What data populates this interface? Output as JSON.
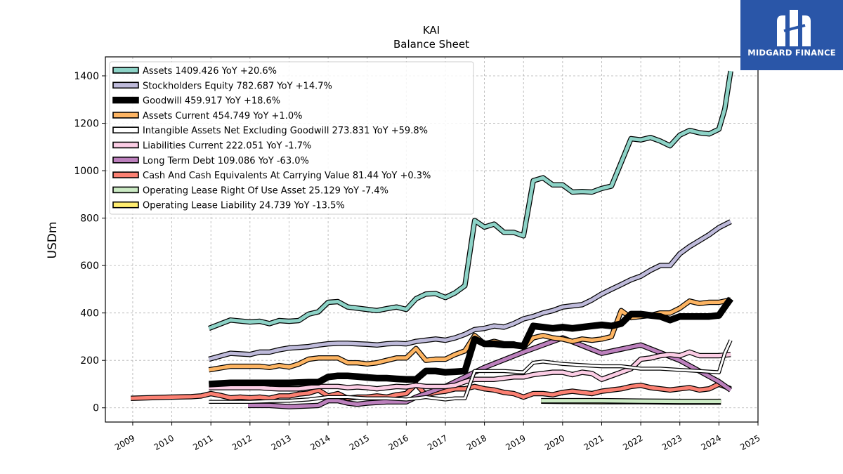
{
  "brand": {
    "name": "MIDGARD FINANCE",
    "icon": "midgard-logo-icon"
  },
  "chart_data": {
    "type": "line",
    "title": "KAI",
    "subtitle": "Balance  Sheet",
    "ylabel": "USDm",
    "xlabel": "",
    "xlim": [
      2008.3,
      2025.0
    ],
    "ylim": [
      -60,
      1480
    ],
    "grid": true,
    "legend_position": "top-left",
    "x_ticks": [
      2009,
      2010,
      2011,
      2012,
      2013,
      2014,
      2015,
      2016,
      2017,
      2018,
      2019,
      2020,
      2021,
      2022,
      2023,
      2024,
      2025
    ],
    "y_ticks": [
      0,
      200,
      400,
      600,
      800,
      1000,
      1200,
      1400
    ],
    "series": [
      {
        "name": "Assets",
        "legend": "Assets  1409.426 YoY +20.6%",
        "color": "#8dd3c7",
        "width": 5,
        "x": [
          2010.95,
          2011.5,
          2012.0,
          2012.25,
          2012.5,
          2012.75,
          2013.0,
          2013.25,
          2013.5,
          2013.75,
          2014.0,
          2014.25,
          2014.5,
          2014.75,
          2015.0,
          2015.25,
          2015.5,
          2015.75,
          2016.0,
          2016.25,
          2016.5,
          2016.75,
          2017.0,
          2017.25,
          2017.5,
          2017.75,
          2018.0,
          2018.25,
          2018.5,
          2018.75,
          2019.0,
          2019.25,
          2019.5,
          2019.75,
          2020.0,
          2020.25,
          2020.5,
          2020.75,
          2021.0,
          2021.25,
          2021.5,
          2021.75,
          2022.0,
          2022.25,
          2022.5,
          2022.75,
          2023.0,
          2023.25,
          2023.5,
          2023.75,
          2024.0,
          2024.15,
          2024.3
        ],
        "y": [
          335,
          370,
          362,
          365,
          355,
          368,
          365,
          368,
          395,
          405,
          445,
          448,
          425,
          420,
          415,
          410,
          418,
          425,
          415,
          460,
          480,
          482,
          465,
          485,
          515,
          790,
          762,
          775,
          740,
          740,
          725,
          958,
          970,
          940,
          940,
          910,
          912,
          910,
          925,
          935,
          1035,
          1135,
          1130,
          1140,
          1125,
          1105,
          1150,
          1170,
          1160,
          1155,
          1175,
          1260,
          1420
        ]
      },
      {
        "name": "Stockholders Equity",
        "legend": "Stockholders Equity  782.687 YoY +14.7%",
        "color": "#bebada",
        "width": 5,
        "x": [
          2010.95,
          2011.5,
          2012.0,
          2012.25,
          2012.5,
          2012.75,
          2013.0,
          2013.25,
          2013.5,
          2013.75,
          2014.0,
          2014.25,
          2014.5,
          2014.75,
          2015.0,
          2015.25,
          2015.5,
          2015.75,
          2016.0,
          2016.25,
          2016.5,
          2016.75,
          2017.0,
          2017.25,
          2017.5,
          2017.75,
          2018.0,
          2018.25,
          2018.5,
          2018.75,
          2019.0,
          2019.25,
          2019.5,
          2019.75,
          2020.0,
          2020.25,
          2020.5,
          2020.75,
          2021.0,
          2021.25,
          2021.5,
          2021.75,
          2022.0,
          2022.25,
          2022.5,
          2022.75,
          2023.0,
          2023.25,
          2023.5,
          2023.75,
          2024.0,
          2024.3
        ],
        "y": [
          205,
          230,
          225,
          235,
          235,
          245,
          252,
          255,
          258,
          265,
          270,
          272,
          272,
          270,
          268,
          265,
          270,
          272,
          270,
          280,
          285,
          290,
          285,
          295,
          310,
          330,
          335,
          345,
          340,
          355,
          375,
          385,
          400,
          410,
          425,
          430,
          435,
          455,
          480,
          500,
          520,
          540,
          555,
          580,
          600,
          600,
          650,
          680,
          705,
          730,
          760,
          785
        ]
      },
      {
        "name": "Goodwill",
        "legend": "Goodwill  459.917 YoY +18.6%",
        "color": "#000000",
        "width": 7,
        "x": [
          2010.95,
          2011.5,
          2012.0,
          2012.5,
          2013.0,
          2013.5,
          2013.75,
          2014.0,
          2014.25,
          2014.5,
          2014.75,
          2015.0,
          2015.25,
          2015.5,
          2015.75,
          2016.0,
          2016.25,
          2016.5,
          2016.75,
          2017.0,
          2017.25,
          2017.5,
          2017.75,
          2018.0,
          2018.25,
          2018.5,
          2018.75,
          2019.0,
          2019.25,
          2019.5,
          2019.75,
          2020.0,
          2020.25,
          2020.5,
          2020.75,
          2021.0,
          2021.25,
          2021.5,
          2021.75,
          2022.0,
          2022.25,
          2022.5,
          2022.75,
          2023.0,
          2023.25,
          2023.5,
          2023.75,
          2024.0,
          2024.15,
          2024.3
        ],
        "y": [
          100,
          105,
          105,
          105,
          105,
          108,
          108,
          130,
          135,
          135,
          132,
          128,
          125,
          125,
          122,
          120,
          120,
          155,
          155,
          150,
          152,
          155,
          290,
          270,
          270,
          265,
          265,
          260,
          345,
          340,
          335,
          340,
          335,
          340,
          345,
          350,
          345,
          355,
          395,
          395,
          390,
          385,
          370,
          385,
          385,
          385,
          385,
          390,
          425,
          460
        ]
      },
      {
        "name": "Assets Current",
        "legend": "Assets Current  454.749 YoY +1.0%",
        "color": "#fdb462",
        "width": 5,
        "x": [
          2010.95,
          2011.5,
          2012.0,
          2012.25,
          2012.5,
          2012.75,
          2013.0,
          2013.25,
          2013.5,
          2013.75,
          2014.0,
          2014.25,
          2014.5,
          2014.75,
          2015.0,
          2015.25,
          2015.5,
          2015.75,
          2016.0,
          2016.25,
          2016.5,
          2016.75,
          2017.0,
          2017.25,
          2017.5,
          2017.75,
          2018.0,
          2018.25,
          2018.5,
          2018.75,
          2019.0,
          2019.25,
          2019.5,
          2019.75,
          2020.0,
          2020.25,
          2020.5,
          2020.75,
          2021.0,
          2021.25,
          2021.5,
          2021.75,
          2022.0,
          2022.25,
          2022.5,
          2022.75,
          2023.0,
          2023.25,
          2023.5,
          2023.75,
          2024.0,
          2024.3
        ],
        "y": [
          160,
          175,
          175,
          175,
          170,
          178,
          172,
          185,
          205,
          210,
          210,
          210,
          190,
          190,
          185,
          190,
          200,
          210,
          210,
          250,
          200,
          205,
          205,
          225,
          240,
          305,
          270,
          280,
          270,
          270,
          255,
          295,
          305,
          295,
          290,
          280,
          290,
          285,
          290,
          300,
          410,
          380,
          385,
          390,
          400,
          400,
          420,
          450,
          440,
          445,
          445,
          455
        ]
      },
      {
        "name": "Intangible Assets Net Excluding Goodwill",
        "legend": "Intangible Assets Net Excluding Goodwill  273.831 YoY +59.8%",
        "color": "#ffffff",
        "width": 3,
        "x": [
          2010.95,
          2011.5,
          2012.0,
          2012.5,
          2013.0,
          2013.5,
          2014.0,
          2014.5,
          2015.0,
          2015.5,
          2016.0,
          2016.25,
          2016.5,
          2016.75,
          2017.0,
          2017.25,
          2017.5,
          2017.75,
          2018.0,
          2018.5,
          2019.0,
          2019.25,
          2019.5,
          2020.0,
          2020.5,
          2021.0,
          2021.5,
          2022.0,
          2022.5,
          2023.0,
          2023.5,
          2024.0,
          2024.15,
          2024.3
        ],
        "y": [
          25,
          25,
          25,
          28,
          30,
          35,
          45,
          45,
          40,
          40,
          35,
          40,
          45,
          40,
          35,
          40,
          40,
          155,
          155,
          155,
          150,
          190,
          195,
          185,
          180,
          175,
          175,
          165,
          165,
          160,
          155,
          150,
          230,
          285
        ]
      },
      {
        "name": "Liabilities Current",
        "legend": "Liabilities Current  222.051 YoY -1.7%",
        "color": "#fccde5",
        "width": 5,
        "x": [
          2010.95,
          2011.5,
          2012.0,
          2012.25,
          2012.5,
          2012.75,
          2013.0,
          2013.25,
          2013.5,
          2013.75,
          2014.0,
          2014.25,
          2014.5,
          2014.75,
          2015.0,
          2015.25,
          2015.5,
          2015.75,
          2016.0,
          2016.25,
          2016.5,
          2016.75,
          2017.0,
          2017.25,
          2017.5,
          2017.75,
          2018.0,
          2018.25,
          2018.5,
          2018.75,
          2019.0,
          2019.25,
          2019.5,
          2019.75,
          2020.0,
          2020.25,
          2020.5,
          2020.75,
          2021.0,
          2021.25,
          2021.5,
          2021.75,
          2022.0,
          2022.25,
          2022.5,
          2022.75,
          2023.0,
          2023.25,
          2023.5,
          2023.75,
          2024.0,
          2024.3
        ],
        "y": [
          85,
          85,
          85,
          85,
          82,
          80,
          80,
          80,
          85,
          90,
          90,
          90,
          85,
          88,
          85,
          80,
          85,
          90,
          88,
          95,
          90,
          90,
          90,
          95,
          110,
          120,
          120,
          120,
          125,
          130,
          130,
          140,
          145,
          150,
          150,
          140,
          150,
          145,
          120,
          135,
          150,
          165,
          205,
          210,
          220,
          225,
          220,
          235,
          220,
          220,
          220,
          225
        ]
      },
      {
        "name": "Long Term Debt",
        "legend": "Long Term Debt  109.086 YoY -63.0%",
        "color": "#bc80bd",
        "width": 5,
        "x": [
          2011.95,
          2012.5,
          2013.0,
          2013.5,
          2013.75,
          2014.0,
          2014.25,
          2014.5,
          2014.75,
          2015.0,
          2015.5,
          2016.0,
          2016.25,
          2017.0,
          2018.0,
          2019.0,
          2020.0,
          2021.0,
          2022.0,
          2023.0,
          2024.0,
          2024.3
        ],
        "y": [
          10,
          10,
          5,
          8,
          10,
          30,
          30,
          20,
          15,
          20,
          25,
          25,
          45,
          90,
          170,
          235,
          295,
          230,
          265,
          200,
          110,
          75
        ]
      },
      {
        "name": "Cash And Cash Equivalents At Carrying Value",
        "legend": "Cash And Cash Equivalents At Carrying Value  81.44 YoY +0.3%",
        "color": "#fb8072",
        "width": 5,
        "x": [
          2008.95,
          2009.5,
          2010.0,
          2010.5,
          2010.75,
          2011.0,
          2011.25,
          2011.5,
          2011.75,
          2012.0,
          2012.25,
          2012.5,
          2012.75,
          2013.0,
          2013.25,
          2013.5,
          2013.75,
          2014.0,
          2014.25,
          2014.5,
          2014.75,
          2015.0,
          2015.25,
          2015.5,
          2015.75,
          2016.0,
          2016.25,
          2016.5,
          2016.75,
          2017.0,
          2017.25,
          2017.5,
          2017.75,
          2018.0,
          2018.25,
          2018.5,
          2018.75,
          2019.0,
          2019.25,
          2019.5,
          2019.75,
          2020.0,
          2020.25,
          2020.5,
          2020.75,
          2021.0,
          2021.25,
          2021.5,
          2021.75,
          2022.0,
          2022.25,
          2022.5,
          2022.75,
          2023.0,
          2023.25,
          2023.5,
          2023.75,
          2024.0,
          2024.3
        ],
        "y": [
          40,
          43,
          45,
          47,
          50,
          60,
          52,
          42,
          45,
          42,
          45,
          40,
          50,
          50,
          58,
          62,
          75,
          50,
          60,
          40,
          45,
          45,
          50,
          45,
          55,
          60,
          100,
          55,
          65,
          70,
          80,
          80,
          90,
          80,
          75,
          65,
          60,
          45,
          60,
          60,
          55,
          65,
          70,
          65,
          60,
          70,
          75,
          80,
          90,
          95,
          85,
          80,
          75,
          80,
          85,
          75,
          80,
          100,
          80
        ]
      },
      {
        "name": "Operating Lease Right Of Use Asset",
        "legend": "Operating Lease Right Of Use Asset  25.129 YoY -7.4%",
        "color": "#ccebc5",
        "width": 5,
        "x": [
          2019.45,
          2020.0,
          2021.0,
          2022.0,
          2023.0,
          2024.05
        ],
        "y": [
          30,
          30,
          30,
          28,
          27,
          27
        ]
      },
      {
        "name": "Operating Lease Liability",
        "legend": "Operating Lease Liability  24.739 YoY -13.5%",
        "color": "#ffed6f",
        "width": 5,
        "x": [
          2019.45,
          2020.0,
          2021.0,
          2022.0,
          2023.0,
          2024.05
        ],
        "y": [
          28,
          27,
          26,
          26,
          24,
          24
        ]
      }
    ]
  }
}
